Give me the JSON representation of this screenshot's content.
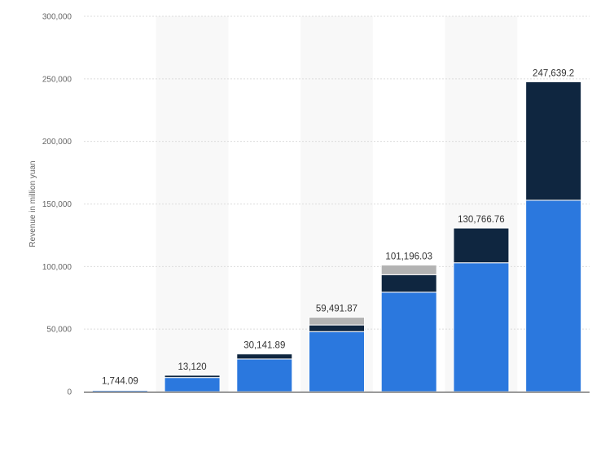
{
  "chart_data": {
    "type": "bar",
    "stacked": true,
    "title": "",
    "xlabel": "",
    "ylabel": "Revenue in million yuan",
    "ylim": [
      0,
      300000
    ],
    "yticks": [
      0,
      50000,
      100000,
      150000,
      200000,
      250000,
      300000
    ],
    "ytick_labels": [
      "0",
      "50,000",
      "100,000",
      "150,000",
      "200,000",
      "250,000",
      "300,000"
    ],
    "grid": true,
    "categories": [
      "",
      "",
      "",
      "",
      "",
      "",
      ""
    ],
    "series": [
      {
        "name": "",
        "color": "#2b78de",
        "values": [
          1100,
          11300,
          26100,
          48000,
          79500,
          103000,
          153000
        ]
      },
      {
        "name": "",
        "color": "#0f2640",
        "values": [
          644.09,
          1820,
          4041.89,
          5300,
          14000,
          27766.76,
          94639.2
        ]
      },
      {
        "name": "",
        "color": "#b3b3b3",
        "values": [
          0,
          0,
          0,
          6191.87,
          7696.03,
          0,
          0
        ]
      }
    ],
    "totals": [
      1744.09,
      13120,
      30141.89,
      59491.87,
      101196.03,
      130766.76,
      247639.2
    ],
    "total_labels": [
      "1,744.09",
      "13,120",
      "30,141.89",
      "59,491.87",
      "101,196.03",
      "130,766.76",
      "247,639.2"
    ]
  }
}
